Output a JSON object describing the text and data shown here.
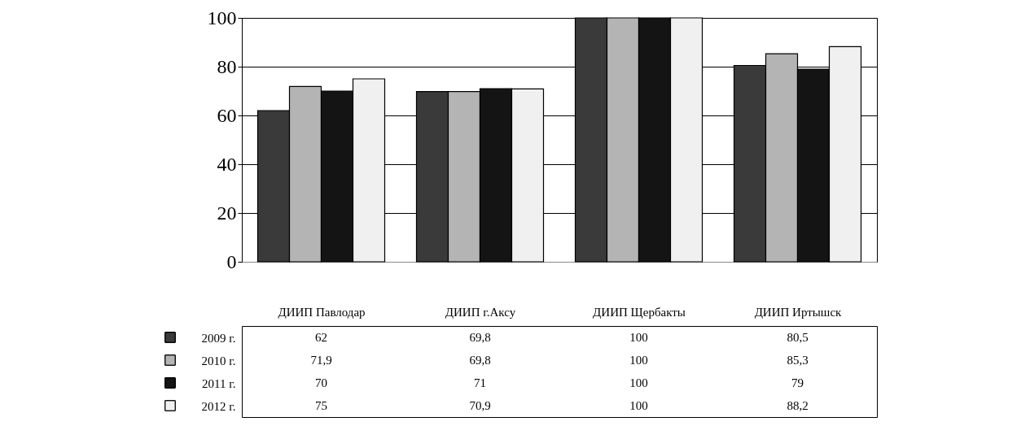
{
  "chart_data": {
    "type": "bar",
    "categories": [
      "ДИИП Павлодар",
      "ДИИП г.Аксу",
      "ДИИП Щербакты",
      "ДИИП Иртышск"
    ],
    "series": [
      {
        "name": "2009 г.",
        "color": "#3a3a3a",
        "values": [
          62,
          69.8,
          100,
          80.5
        ],
        "value_labels": [
          "62",
          "69,8",
          "100",
          "80,5"
        ]
      },
      {
        "name": "2010 г.",
        "color": "#b4b4b4",
        "values": [
          71.9,
          69.8,
          100,
          85.3
        ],
        "value_labels": [
          "71,9",
          "69,8",
          "100",
          "85,3"
        ]
      },
      {
        "name": "2011 г.",
        "color": "#141414",
        "values": [
          70,
          71,
          100,
          79
        ],
        "value_labels": [
          "70",
          "71",
          "100",
          "79"
        ]
      },
      {
        "name": "2012 г.",
        "color": "#f0f0f0",
        "values": [
          75,
          70.9,
          100,
          88.2
        ],
        "value_labels": [
          "75",
          "70,9",
          "100",
          "88,2"
        ]
      }
    ],
    "ylim": [
      0,
      100
    ],
    "yticks": [
      0,
      20,
      40,
      60,
      80,
      100
    ],
    "grid": "y",
    "legend": "bottom left"
  }
}
